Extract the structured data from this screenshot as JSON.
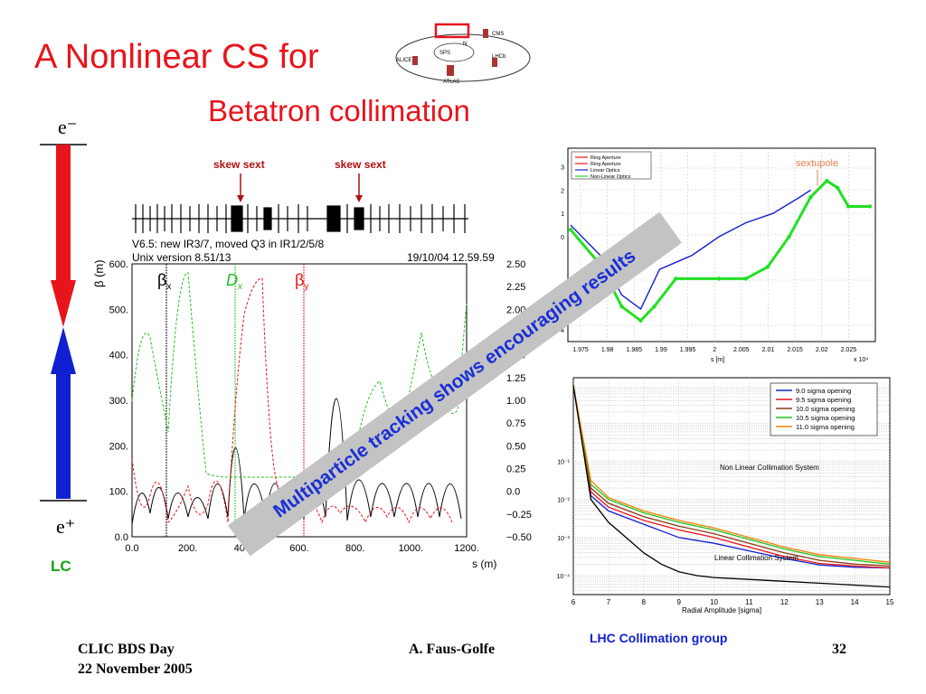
{
  "slide": {
    "title_line1": "A Nonlinear CS for",
    "title_line2": "Betatron  collimation",
    "banner": "Multiparticle tracking shows encouraging results",
    "credit": "LHC Collimation group",
    "colors": {
      "title": "#e8141b",
      "banner_text": "#1a2fd8",
      "banner_bg": "#c3c3c3",
      "lc": "#17a017"
    }
  },
  "footer": {
    "event": "CLIC BDS Day",
    "date": "22 November 2005",
    "author": "A. Faus-Golfe",
    "page": "32"
  },
  "ring": {
    "labels": [
      "CMS",
      "ALICE",
      "SPS",
      "LHCb",
      "ATLAS",
      "N"
    ],
    "highlight_box_color": "#e8141b"
  },
  "collider": {
    "top_label": "e⁻",
    "bottom_label": "e⁺",
    "caption": "LC",
    "top_arrow_color": "#e8141b",
    "bottom_arrow_color": "#1020d0"
  },
  "optics_plot": {
    "sext_labels": [
      "skew sext",
      "skew sext"
    ],
    "header_left_1": "V6.5: new IR3/7, moved Q3 in IR1/2/5/8",
    "header_left_2": "Unix version 8.51/13",
    "header_right": "19/10/04  12.59.59",
    "legend": [
      "β",
      "D",
      "β"
    ],
    "legend_subscripts": [
      "x",
      "x",
      "y"
    ],
    "ylabel": "β (m)",
    "xlabel": "s (m)",
    "y_ticks": [
      "600.",
      "500.",
      "400.",
      "300.",
      "200.",
      "100.",
      "0.0"
    ],
    "y2_ticks": [
      "2.50",
      "2.25",
      "2.00",
      "1.75",
      "1.50",
      "1.25",
      "1.00",
      "0.75",
      "0.50",
      "0.25",
      "0.0",
      "−0.25",
      "−0.50"
    ],
    "x_ticks": [
      "0.0",
      "200.",
      "400.",
      "600.",
      "800.",
      "1000.",
      "1200."
    ]
  },
  "chart_data": [
    {
      "type": "line",
      "xlabel": "s [m]",
      "x_multiplier": "x 10⁴",
      "annotation": "sextupole",
      "legend": [
        "Ring Aperture",
        "Ring Aperture",
        "Linear Optics",
        "Non-Linear Optics"
      ],
      "x_ticks": [
        "1.975",
        "1.98",
        "1.985",
        "1.99",
        "1.995",
        "2",
        "2.005",
        "2.01",
        "2.015",
        "2.02",
        "2.025"
      ],
      "y_ticks": [
        "3",
        "2",
        "1",
        "0",
        "-4"
      ],
      "series": [
        {
          "name": "Linear Optics",
          "color": "#1020d0",
          "x": [
            1.9725,
            1.978,
            1.982,
            1.9855,
            1.989,
            1.995,
            2.0,
            2.005,
            2.01,
            2.015,
            2.017
          ],
          "y": [
            0.5,
            -0.8,
            -2.5,
            -3.1,
            -1.4,
            -0.8,
            0.0,
            0.6,
            1.0,
            1.7,
            2.0
          ]
        },
        {
          "name": "Non-Linear Optics",
          "color": "#22e022",
          "x": [
            1.9725,
            1.978,
            1.982,
            1.9855,
            1.988,
            1.992,
            2.0,
            2.005,
            2.009,
            2.013,
            2.017,
            2.02,
            2.022,
            2.024,
            2.028
          ],
          "y": [
            0.3,
            -1.2,
            -3.0,
            -3.6,
            -3.0,
            -1.8,
            -1.8,
            -1.8,
            -1.3,
            0.0,
            1.7,
            2.4,
            2.1,
            1.3,
            1.3
          ]
        }
      ]
    },
    {
      "type": "line",
      "xlabel": "Radial Amplitude [sigma]",
      "x_ticks": [
        "6",
        "7",
        "8",
        "9",
        "10",
        "11",
        "12",
        "13",
        "14",
        "15"
      ],
      "y_ticks": [
        "10⁻¹",
        "10⁻²",
        "10⁻³",
        "10⁻⁴"
      ],
      "annotations": [
        "Non Linear Collimation System",
        "Linear Collimation System"
      ],
      "legend": [
        "9.0 sigma opening",
        "9.5 sigma opening",
        "10.0 sigma opening",
        "10.5 sigma opening",
        "11.0 sigma opening"
      ],
      "series": [
        {
          "name": "9.0 sigma opening",
          "color": "#1020d0",
          "x": [
            6,
            6.5,
            7,
            8,
            9,
            10,
            11,
            12,
            13,
            14,
            15
          ],
          "y": [
            1.0,
            -1.9,
            -2.3,
            -2.65,
            -3.0,
            -3.15,
            -3.35,
            -3.55,
            -3.72,
            -3.78,
            -3.8
          ]
        },
        {
          "name": "9.5 sigma opening",
          "color": "#e8141b",
          "x": [
            6,
            6.5,
            7,
            8,
            9,
            10,
            11,
            12,
            13,
            14,
            15
          ],
          "y": [
            1.0,
            -1.8,
            -2.2,
            -2.55,
            -2.8,
            -3.0,
            -3.25,
            -3.5,
            -3.68,
            -3.75,
            -3.8
          ]
        },
        {
          "name": "10.0 sigma opening",
          "color": "#8a3a10",
          "x": [
            6,
            6.5,
            7,
            8,
            9,
            10,
            11,
            12,
            13,
            14,
            15
          ],
          "y": [
            1.0,
            -1.7,
            -2.1,
            -2.45,
            -2.7,
            -2.9,
            -3.15,
            -3.4,
            -3.6,
            -3.7,
            -3.75
          ]
        },
        {
          "name": "10.5 sigma opening",
          "color": "#22c022",
          "x": [
            6,
            6.5,
            7,
            8,
            9,
            10,
            11,
            12,
            13,
            14,
            15
          ],
          "y": [
            1.0,
            -1.6,
            -2.0,
            -2.35,
            -2.6,
            -2.8,
            -3.05,
            -3.3,
            -3.5,
            -3.6,
            -3.7
          ]
        },
        {
          "name": "11.0 sigma opening",
          "color": "#f08000",
          "x": [
            6,
            6.5,
            7,
            8,
            9,
            10,
            11,
            12,
            13,
            14,
            15
          ],
          "y": [
            1.0,
            -1.5,
            -1.95,
            -2.3,
            -2.55,
            -2.75,
            -3.0,
            -3.25,
            -3.45,
            -3.55,
            -3.65
          ]
        },
        {
          "name": "Linear Collimation System",
          "color": "#000000",
          "x": [
            6,
            6.5,
            7,
            7.5,
            8,
            8.5,
            9,
            9.5,
            10,
            11,
            12,
            13,
            14,
            15
          ],
          "y": [
            1.0,
            -2.0,
            -2.6,
            -3.0,
            -3.4,
            -3.7,
            -3.9,
            -4.0,
            -4.05,
            -4.1,
            -4.15,
            -4.2,
            -4.25,
            -4.3
          ]
        }
      ]
    }
  ]
}
